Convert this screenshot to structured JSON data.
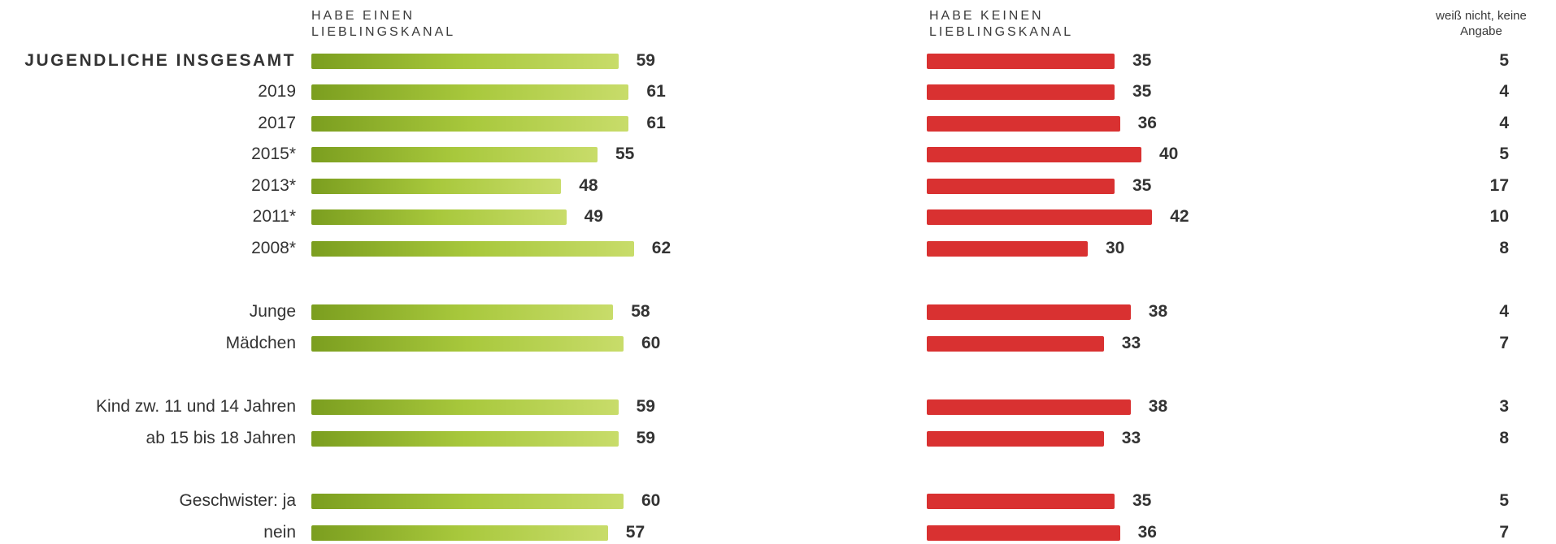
{
  "headers": {
    "have": "HABE EINEN LIEBLINGSKANAL",
    "have_not": "HABE KEINEN LIEBLINGSKANAL",
    "unknown": "weiß nicht, keine Angabe"
  },
  "colors": {
    "have": "#9dbf35",
    "have_not": "#d93131"
  },
  "chart_data": {
    "type": "bar",
    "orientation": "horizontal",
    "categories": [
      "JUGENDLICHE INSGESAMT",
      "2019",
      "2017",
      "2015*",
      "2013*",
      "2011*",
      "2008*",
      "Junge",
      "Mädchen",
      "Kind zw. 11 und 14 Jahren",
      "ab 15 bis 18 Jahren",
      "Geschwister: ja",
      "nein"
    ],
    "series": [
      {
        "name": "HABE EINEN LIEBLINGSKANAL",
        "values": [
          59,
          61,
          61,
          55,
          48,
          49,
          62,
          58,
          60,
          59,
          59,
          60,
          57
        ]
      },
      {
        "name": "HABE KEINEN LIEBLINGSKANAL",
        "values": [
          35,
          35,
          36,
          40,
          35,
          42,
          30,
          38,
          33,
          38,
          33,
          35,
          36
        ]
      },
      {
        "name": "weiß nicht, keine Angabe",
        "values": [
          5,
          4,
          4,
          5,
          17,
          10,
          8,
          4,
          7,
          3,
          8,
          5,
          7
        ]
      }
    ]
  }
}
